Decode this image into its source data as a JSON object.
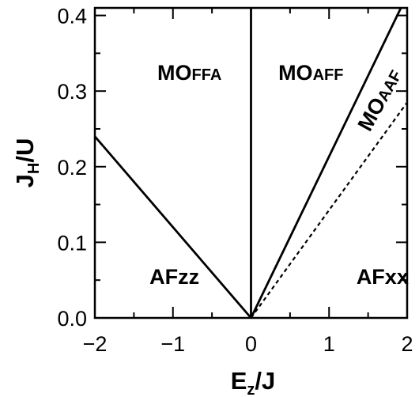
{
  "chart_data": {
    "type": "line",
    "xlabel": {
      "main": "E",
      "sub": "z",
      "rest": "/J"
    },
    "ylabel": {
      "main": "J",
      "sub": "H",
      "rest": "/U"
    },
    "xlim": [
      -2,
      2
    ],
    "ylim": [
      0,
      0.41
    ],
    "xticks": [
      {
        "value": -2,
        "label": "−2"
      },
      {
        "value": -1,
        "label": "−1"
      },
      {
        "value": 0,
        "label": "0"
      },
      {
        "value": 1,
        "label": "1"
      },
      {
        "value": 2,
        "label": "2"
      }
    ],
    "yticks": [
      {
        "value": 0.0,
        "label": "0.0"
      },
      {
        "value": 0.1,
        "label": "0.1"
      },
      {
        "value": 0.2,
        "label": "0.2"
      },
      {
        "value": 0.3,
        "label": "0.3"
      },
      {
        "value": 0.4,
        "label": "0.4"
      }
    ],
    "x_minor_step": 0.5,
    "y_minor_step": 0.05,
    "grid": false,
    "series": [
      {
        "style": "solid",
        "x": [
          -2,
          0
        ],
        "y": [
          0.24,
          0
        ]
      },
      {
        "style": "solid",
        "x": [
          0,
          0
        ],
        "y": [
          0,
          0.41
        ]
      },
      {
        "style": "solid",
        "x": [
          0,
          1.92
        ],
        "y": [
          0,
          0.41
        ]
      },
      {
        "style": "dashed",
        "x": [
          0,
          2
        ],
        "y": [
          0,
          0.285
        ]
      }
    ],
    "regions": [
      {
        "label": "MO",
        "label_small": "FFA",
        "x": -1.2,
        "y": 0.315
      },
      {
        "label": "MO",
        "label_small": "AFF",
        "x": 0.35,
        "y": 0.315
      },
      {
        "label": "MO",
        "label_small": "AAF",
        "x": 1.52,
        "y": 0.245,
        "rotate": -61
      },
      {
        "label": "AFzz",
        "label_small": "",
        "x": -1.3,
        "y": 0.045
      },
      {
        "label": "AFxx",
        "label_small": "",
        "x": 1.35,
        "y": 0.045
      }
    ]
  }
}
